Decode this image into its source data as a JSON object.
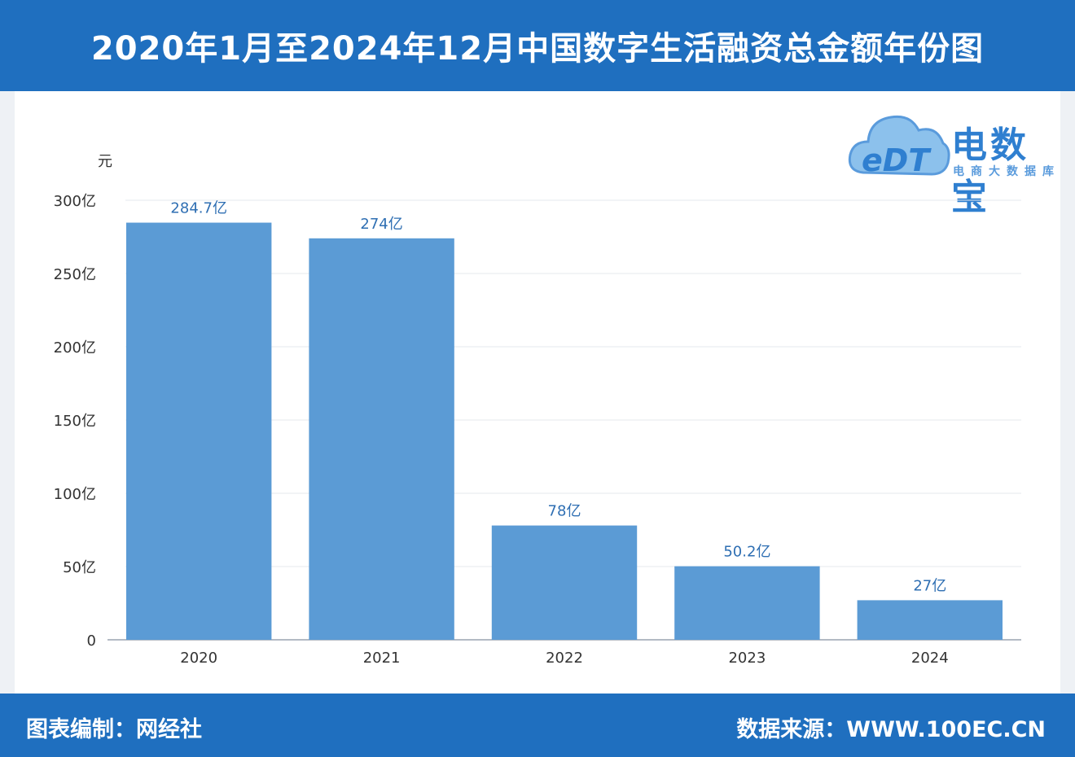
{
  "header": {
    "title": "2020年1月至2024年12月中国数字生活融资总金额年份图"
  },
  "logo": {
    "brand": "电数宝",
    "sub": "电商大数据库",
    "mark": "eDT"
  },
  "footer": {
    "left": "图表编制：网经社",
    "right": "数据来源：WWW.100EC.CN"
  },
  "colors": {
    "header_bg": "#1f6fbf",
    "bar": "#5b9bd5",
    "value_label": "#2f6fb3"
  },
  "chart_data": {
    "type": "bar",
    "title": "2020年1月至2024年12月中国数字生活融资总金额年份图",
    "ylabel": "元",
    "xlabel": "",
    "categories": [
      "2020",
      "2021",
      "2022",
      "2023",
      "2024"
    ],
    "values": [
      284.7,
      274,
      78,
      50.2,
      27
    ],
    "value_labels": [
      "284.7亿",
      "274亿",
      "78亿",
      "50.2亿",
      "27亿"
    ],
    "ylim": [
      0,
      300
    ],
    "yticks": [
      0,
      50,
      100,
      150,
      200,
      250,
      300
    ],
    "ytick_labels": [
      "0",
      "50亿",
      "100亿",
      "150亿",
      "200亿",
      "250亿",
      "300亿"
    ],
    "grid": true,
    "legend": "none"
  }
}
